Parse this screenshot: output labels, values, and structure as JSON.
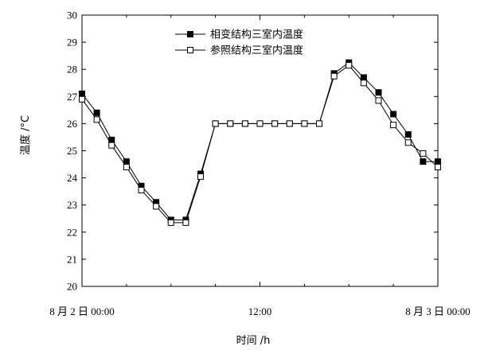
{
  "chart_data": {
    "type": "line",
    "xlabel": "时间 /h",
    "ylabel": "温度 /°C",
    "ylim": [
      20,
      30
    ],
    "yticks": [
      20,
      21,
      22,
      23,
      24,
      25,
      26,
      27,
      28,
      29,
      30
    ],
    "xlim": [
      0,
      24
    ],
    "xticks": [
      {
        "value": 0,
        "label": "8 月 2 日 00:00"
      },
      {
        "value": 12,
        "label": "12:00"
      },
      {
        "value": 24,
        "label": "8 月 3 日 00:00"
      }
    ],
    "legend_position": "top-center",
    "series": [
      {
        "name": "相变结构三室内温度",
        "marker": "filled-square",
        "color": "#000000",
        "x": [
          0,
          1,
          2,
          3,
          4,
          5,
          6,
          7,
          8,
          9,
          10,
          11,
          12,
          13,
          14,
          15,
          16,
          17,
          18,
          19,
          20,
          21,
          22,
          23,
          24
        ],
        "y": [
          27.1,
          26.4,
          25.4,
          24.6,
          23.7,
          23.1,
          22.45,
          22.45,
          24.15,
          26.0,
          26.0,
          26.0,
          26.0,
          26.0,
          26.0,
          26.0,
          26.0,
          27.85,
          28.25,
          27.7,
          27.15,
          26.35,
          25.6,
          24.6,
          24.6
        ]
      },
      {
        "name": "参照结构三室内温度",
        "marker": "open-square",
        "color": "#000000",
        "x": [
          0,
          1,
          2,
          3,
          4,
          5,
          6,
          7,
          8,
          9,
          10,
          11,
          12,
          13,
          14,
          15,
          16,
          17,
          18,
          19,
          20,
          21,
          22,
          23,
          24
        ],
        "y": [
          26.9,
          26.15,
          25.2,
          24.4,
          23.55,
          22.95,
          22.35,
          22.35,
          24.05,
          26.0,
          26.0,
          26.0,
          26.0,
          26.0,
          26.0,
          26.0,
          26.0,
          27.75,
          28.15,
          27.5,
          26.85,
          25.95,
          25.3,
          24.9,
          24.4
        ]
      }
    ]
  }
}
